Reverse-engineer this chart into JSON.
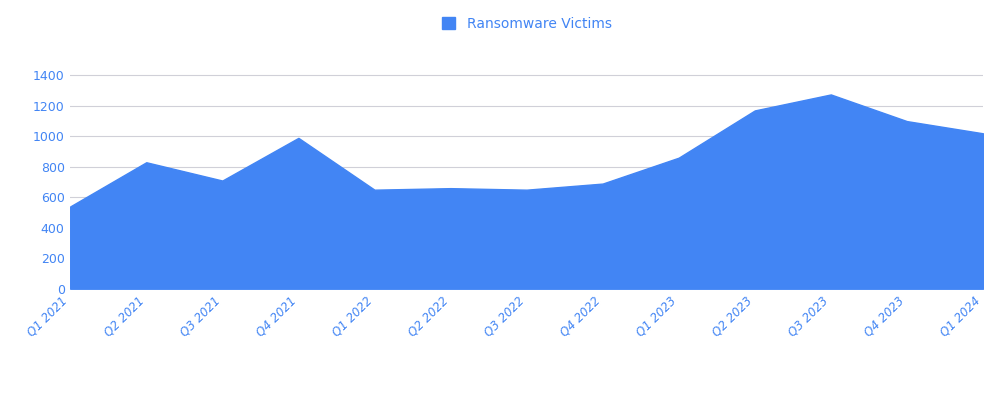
{
  "categories": [
    "Q1 2021",
    "Q2 2021",
    "Q3 2021",
    "Q4 2021",
    "Q1 2022",
    "Q2 2022",
    "Q3 2022",
    "Q4 2022",
    "Q1 2023",
    "Q2 2023",
    "Q3 2023",
    "Q4 2023",
    "Q1 2024"
  ],
  "values": [
    540,
    830,
    710,
    990,
    650,
    660,
    650,
    690,
    860,
    1170,
    1275,
    1100,
    1020
  ],
  "fill_color": "#4285f4",
  "line_color": "#4285f4",
  "background_color": "#ffffff",
  "grid_color": "#d0d0d8",
  "legend_label": "Ransomware Victims",
  "legend_color": "#4285f4",
  "tick_label_color": "#4285f4",
  "ylim": [
    0,
    1500
  ],
  "yticks": [
    0,
    200,
    400,
    600,
    800,
    1000,
    1200,
    1400
  ],
  "figsize": [
    10.03,
    4.01
  ],
  "dpi": 100
}
